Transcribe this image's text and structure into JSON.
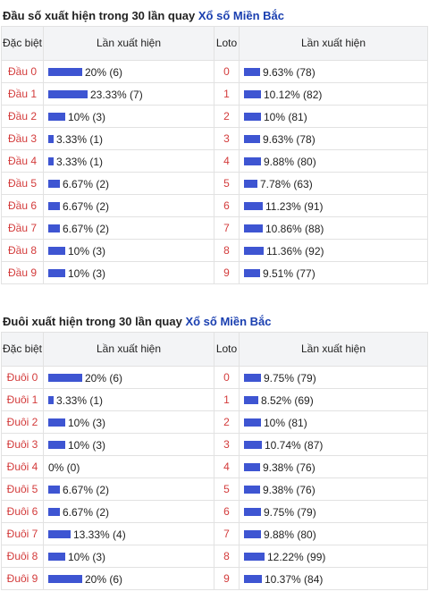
{
  "dau": {
    "title_prefix": "Đầu số xuất hiện trong 30 lần quay",
    "title_brand": "Xổ số Miền Bắc",
    "headers": {
      "label": "Đặc biệt",
      "freq": "Lần xuất hiện",
      "loto": "Loto",
      "freq2": "Lần xuất hiện"
    },
    "rows": [
      {
        "label": "Đầu 0",
        "pct": 20,
        "text": "20% (6)",
        "loto": "0",
        "pct2": 9.63,
        "text2": "9.63% (78)"
      },
      {
        "label": "Đầu 1",
        "pct": 23.33,
        "text": "23.33% (7)",
        "loto": "1",
        "pct2": 10.12,
        "text2": "10.12% (82)"
      },
      {
        "label": "Đầu 2",
        "pct": 10,
        "text": "10% (3)",
        "loto": "2",
        "pct2": 10,
        "text2": "10% (81)"
      },
      {
        "label": "Đầu 3",
        "pct": 3.33,
        "text": "3.33% (1)",
        "loto": "3",
        "pct2": 9.63,
        "text2": "9.63% (78)"
      },
      {
        "label": "Đầu 4",
        "pct": 3.33,
        "text": "3.33% (1)",
        "loto": "4",
        "pct2": 9.88,
        "text2": "9.88% (80)"
      },
      {
        "label": "Đầu 5",
        "pct": 6.67,
        "text": "6.67% (2)",
        "loto": "5",
        "pct2": 7.78,
        "text2": "7.78% (63)"
      },
      {
        "label": "Đầu 6",
        "pct": 6.67,
        "text": "6.67% (2)",
        "loto": "6",
        "pct2": 11.23,
        "text2": "11.23% (91)"
      },
      {
        "label": "Đầu 7",
        "pct": 6.67,
        "text": "6.67% (2)",
        "loto": "7",
        "pct2": 10.86,
        "text2": "10.86% (88)"
      },
      {
        "label": "Đầu 8",
        "pct": 10,
        "text": "10% (3)",
        "loto": "8",
        "pct2": 11.36,
        "text2": "11.36% (92)"
      },
      {
        "label": "Đầu 9",
        "pct": 10,
        "text": "10% (3)",
        "loto": "9",
        "pct2": 9.51,
        "text2": "9.51% (77)"
      }
    ]
  },
  "duoi": {
    "title_prefix": "Đuôi xuất hiện trong 30 lần quay",
    "title_brand": "Xổ số Miền Bắc",
    "headers": {
      "label": "Đặc biệt",
      "freq": "Lần xuất hiện",
      "loto": "Loto",
      "freq2": "Lần xuất hiện"
    },
    "rows": [
      {
        "label": "Đuôi 0",
        "pct": 20,
        "text": "20% (6)",
        "loto": "0",
        "pct2": 9.75,
        "text2": "9.75% (79)"
      },
      {
        "label": "Đuôi 1",
        "pct": 3.33,
        "text": "3.33% (1)",
        "loto": "1",
        "pct2": 8.52,
        "text2": "8.52% (69)"
      },
      {
        "label": "Đuôi 2",
        "pct": 10,
        "text": "10% (3)",
        "loto": "2",
        "pct2": 10,
        "text2": "10% (81)"
      },
      {
        "label": "Đuôi 3",
        "pct": 10,
        "text": "10% (3)",
        "loto": "3",
        "pct2": 10.74,
        "text2": "10.74% (87)"
      },
      {
        "label": "Đuôi 4",
        "pct": 0,
        "text": "0% (0)",
        "loto": "4",
        "pct2": 9.38,
        "text2": "9.38% (76)"
      },
      {
        "label": "Đuôi 5",
        "pct": 6.67,
        "text": "6.67% (2)",
        "loto": "5",
        "pct2": 9.38,
        "text2": "9.38% (76)"
      },
      {
        "label": "Đuôi 6",
        "pct": 6.67,
        "text": "6.67% (2)",
        "loto": "6",
        "pct2": 9.75,
        "text2": "9.75% (79)"
      },
      {
        "label": "Đuôi 7",
        "pct": 13.33,
        "text": "13.33% (4)",
        "loto": "7",
        "pct2": 9.88,
        "text2": "9.88% (80)"
      },
      {
        "label": "Đuôi 8",
        "pct": 10,
        "text": "10% (3)",
        "loto": "8",
        "pct2": 12.22,
        "text2": "12.22% (99)"
      },
      {
        "label": "Đuôi 9",
        "pct": 20,
        "text": "20% (6)",
        "loto": "9",
        "pct2": 10.37,
        "text2": "10.37% (84)"
      }
    ]
  },
  "colors": {
    "bar": "#3e55d2",
    "label_red": "#d33b3b",
    "brand_blue": "#1a3fb0"
  }
}
